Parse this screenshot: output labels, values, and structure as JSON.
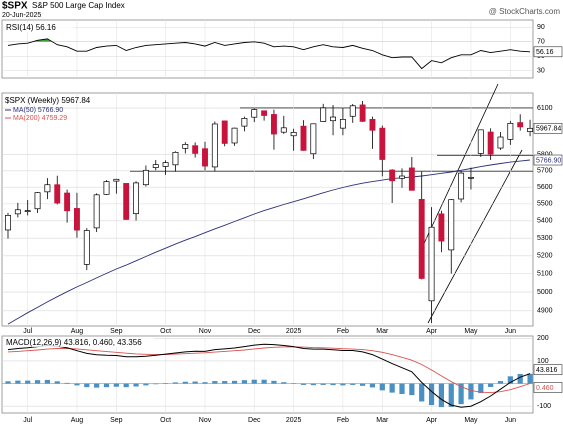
{
  "header": {
    "symbol": "$SPX",
    "name": "S&P 500 Large Cap Index",
    "date": "20-Jun-2025",
    "source": "@ StockCharts.com"
  },
  "chart_data": [
    {
      "type": "line",
      "legend": "RSI(14) 56.16",
      "ylim": [
        20,
        100
      ],
      "yticks": [
        30,
        50,
        70,
        90
      ],
      "overbought": 70,
      "fill_color": "#3f9a3a",
      "series": [
        {
          "name": "RSI(14)",
          "color": "#000000",
          "values": [
            65,
            67,
            68,
            72,
            74,
            66,
            63,
            57,
            57,
            62,
            64,
            65,
            58,
            62,
            65,
            66,
            67,
            68,
            69,
            67,
            64,
            69,
            65,
            67,
            69,
            70,
            68,
            63,
            64,
            63,
            59,
            63,
            66,
            63,
            62,
            65,
            61,
            58,
            52,
            48,
            49,
            49,
            33,
            44,
            41,
            48,
            52,
            52,
            58,
            55,
            57,
            59,
            57,
            56.16
          ]
        }
      ]
    },
    {
      "type": "candlestick",
      "legend": "$SPX (Weekly) 5967.84",
      "log_scale": true,
      "ylim": [
        4820,
        6200
      ],
      "yticks": [
        4900,
        5000,
        5100,
        5200,
        5300,
        5400,
        5500,
        5600,
        5700,
        5800,
        6100
      ],
      "up_color": "#ffffff",
      "down_color": "#c8143c",
      "grid": true,
      "categories": [
        null,
        null,
        "Jul",
        null,
        null,
        null,
        null,
        "Aug",
        null,
        null,
        null,
        "Sep",
        null,
        null,
        null,
        null,
        "Oct",
        null,
        null,
        null,
        "Nov",
        null,
        null,
        null,
        null,
        "Dec",
        null,
        null,
        null,
        "2025",
        null,
        null,
        null,
        null,
        "Feb",
        null,
        null,
        null,
        "Mar",
        null,
        null,
        null,
        null,
        "Apr",
        null,
        null,
        null,
        "May",
        null,
        null,
        null,
        "Jun",
        null,
        null
      ],
      "open": [
        5347,
        5441,
        5459,
        5471,
        5572,
        5615,
        5565,
        5473,
        5152,
        5359,
        5557,
        5637,
        5623,
        5442,
        5615,
        5720,
        5727,
        5737,
        5840,
        5857,
        5838,
        5724,
        6016,
        5874,
        5982,
        6040,
        6082,
        6058,
        5943,
        5920,
        5982,
        5806,
        6012,
        6017,
        5969,
        6046,
        6121,
        6026,
        5969,
        5705,
        5654,
        5718,
        5527,
        4953,
        5441,
        5233,
        5529,
        5655,
        5808,
        5944,
        5842,
        5897,
        6005,
        5947
      ],
      "high": [
        5447,
        5506,
        5523,
        5570,
        5655,
        5670,
        5585,
        5566,
        5358,
        5563,
        5643,
        5651,
        5623,
        5636,
        5733,
        5767,
        5765,
        5822,
        5879,
        5878,
        5882,
        6012,
        6018,
        5972,
        6044,
        6099,
        6085,
        6090,
        6049,
        5965,
        6021,
        5998,
        6128,
        6120,
        6101,
        6127,
        6147,
        6044,
        5986,
        5710,
        5715,
        5786,
        5695,
        5481,
        5459,
        5528,
        5700,
        5720,
        5958,
        5968,
        5944,
        6016,
        6059,
        6023
      ],
      "low": [
        5297,
        5420,
        5432,
        5446,
        5528,
        5497,
        5390,
        5302,
        5120,
        5335,
        5554,
        5561,
        5406,
        5402,
        5604,
        5703,
        5675,
        5695,
        5808,
        5782,
        5702,
        5696,
        5853,
        5856,
        5948,
        6008,
        6018,
        5832,
        5932,
        5825,
        5825,
        5773,
        6009,
        5923,
        5923,
        6003,
        6009,
        5837,
        5666,
        5505,
        5597,
        5581,
        5069,
        4835,
        5220,
        5101,
        5509,
        5586,
        5786,
        5767,
        5830,
        5862,
        5953,
        5917
      ],
      "close": [
        5432,
        5465,
        5460,
        5567,
        5615,
        5505,
        5459,
        5346,
        5344,
        5554,
        5634,
        5648,
        5408,
        5626,
        5703,
        5738,
        5751,
        5815,
        5865,
        5808,
        5729,
        5996,
        5871,
        5969,
        6032,
        6090,
        6051,
        5931,
        5971,
        5942,
        5827,
        5997,
        6101,
        6041,
        6026,
        6115,
        6013,
        5955,
        5770,
        5639,
        5668,
        5581,
        5074,
        5363,
        5283,
        5525,
        5686,
        5660,
        5958,
        5803,
        5912,
        6000,
        5977,
        5967.84
      ],
      "series": [
        {
          "name": "MA(50) 5766.90",
          "color": "#2b2f7a",
          "value_label": "5766.90",
          "values": [
            4830,
            4860,
            4890,
            4918,
            4947,
            4975,
            5002,
            5028,
            5052,
            5077,
            5102,
            5126,
            5148,
            5172,
            5196,
            5220,
            5243,
            5266,
            5288,
            5309,
            5331,
            5353,
            5374,
            5396,
            5418,
            5440,
            5460,
            5478,
            5496,
            5513,
            5530,
            5548,
            5566,
            5583,
            5598,
            5612,
            5624,
            5634,
            5643,
            5652,
            5657,
            5662,
            5668,
            5676,
            5685,
            5693,
            5703,
            5714,
            5726,
            5736,
            5745,
            5754,
            5760,
            5766.9
          ]
        },
        {
          "name": "MA(200) 4759.29",
          "color": "#d9534f"
        }
      ]
    },
    {
      "type": "macd",
      "legend": "MACD(12,26,9) 43.816, 0.460, 43.356",
      "ylim": [
        -130,
        210
      ],
      "yticks": [
        -100,
        100,
        200
      ],
      "macd_color": "#000000",
      "signal_color": "#d9534f",
      "histogram_color": "#4a90c2",
      "signal_label": "0.460",
      "macd": [
        150,
        155,
        158,
        163,
        168,
        165,
        158,
        145,
        133,
        127,
        125,
        124,
        118,
        118,
        121,
        125,
        130,
        135,
        140,
        143,
        142,
        150,
        153,
        157,
        163,
        170,
        174,
        172,
        168,
        163,
        155,
        152,
        152,
        149,
        146,
        146,
        140,
        128,
        108,
        88,
        70,
        52,
        5,
        -35,
        -70,
        -95,
        -105,
        -100,
        -80,
        -55,
        -25,
        5,
        28,
        43.816
      ],
      "signal": [
        140,
        142,
        145,
        148,
        152,
        155,
        155,
        153,
        149,
        145,
        141,
        138,
        134,
        131,
        129,
        128,
        128,
        130,
        132,
        134,
        136,
        139,
        142,
        145,
        148,
        153,
        157,
        160,
        162,
        162,
        161,
        159,
        158,
        156,
        154,
        152,
        150,
        145,
        138,
        128,
        116,
        103,
        84,
        60,
        34,
        8,
        -14,
        -30,
        -38,
        -40,
        -36,
        -27,
        -14,
        0.46
      ],
      "histogram": [
        10,
        13,
        13,
        15,
        16,
        10,
        3,
        -8,
        -16,
        -18,
        -16,
        -14,
        -16,
        -13,
        -8,
        -3,
        2,
        5,
        8,
        9,
        6,
        11,
        11,
        12,
        15,
        17,
        17,
        12,
        6,
        1,
        -6,
        -7,
        -6,
        -7,
        -8,
        -6,
        -10,
        -17,
        -30,
        -40,
        -46,
        -51,
        -79,
        -95,
        -104,
        -103,
        -91,
        -70,
        -42,
        -15,
        11,
        32,
        42,
        43.356
      ]
    }
  ]
}
